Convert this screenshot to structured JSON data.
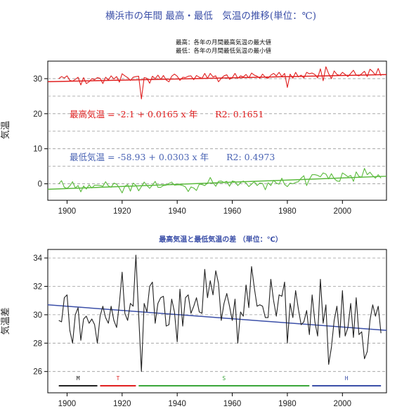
{
  "chart_data": [
    {
      "type": "line",
      "title": "横浜市の年間 最高・最低　気温の推移(単位：℃)",
      "subtitle_lines": [
        "最高：各年の月間最高気温の最大値",
        "最低：各年の月間最低気温の最小値"
      ],
      "ylabel": "気温",
      "xlabel": "",
      "xlim": [
        1893,
        2016
      ],
      "ylim": [
        -4.7,
        35
      ],
      "xticks": [
        1900,
        1920,
        1940,
        1960,
        1980,
        2000
      ],
      "yticks": [
        0,
        10,
        20,
        30
      ],
      "grid": "horizontal-dashed",
      "series": [
        {
          "color": "#e02020",
          "values_start_year": 1897,
          "values": [
            30,
            30.6,
            30.2,
            30.8,
            29.5,
            29.3,
            29.8,
            30.4,
            28.2,
            30.3,
            28.6,
            29.1,
            30,
            29.7,
            30.3,
            30.1,
            28.6,
            30.4,
            29.6,
            30.8,
            29.9,
            30.6,
            29,
            31.4,
            30.8,
            30.3,
            29.5,
            30.4,
            30.6,
            30.7,
            24.2,
            30.3,
            30.1,
            28.7,
            30.7,
            30,
            31,
            29.8,
            30.9,
            29.6,
            29.1,
            30.7,
            31.3,
            30.7,
            29.5,
            30.4,
            30.3,
            30.7,
            30.8,
            29.7,
            30.9,
            30.4,
            30.1,
            31.5,
            30.1,
            31.5,
            30.5,
            30.8,
            29.1,
            30.1,
            30.8,
            31.1,
            29.8,
            30.3,
            31.5,
            30.1,
            30.8,
            30.5,
            31.2,
            30.2,
            31.6,
            31,
            30.7,
            30.1,
            31.3,
            30.4,
            30.1,
            31,
            31.5,
            30.8,
            31.8,
            30.6,
            31.5,
            27.5,
            31.3,
            30.1,
            31.8,
            30.5,
            31,
            30.2,
            31.8,
            31.4,
            31.6,
            31.2,
            30.2,
            32.8,
            29.4,
            33.4,
            31.4,
            30,
            32.2,
            31.2,
            30.9,
            31.8,
            31.2,
            30.6,
            31.5,
            32.4,
            31,
            30.8,
            31.4,
            32.1,
            30.6,
            32.7,
            32,
            31,
            32.9,
            30.8
          ]
        },
        {
          "color": "#5aba3c",
          "values_start_year": 1897,
          "values": [
            0,
            0.9,
            -1,
            -1.3,
            -0.6,
            0.6,
            -1.2,
            -0.5,
            -2.3,
            -0.6,
            -1.5,
            -0.3,
            -1.2,
            -0.4,
            -0.4,
            -0.5,
            -0.7,
            0.6,
            -0.6,
            -1,
            0.2,
            -0.1,
            -1.2,
            -2.6,
            -0.7,
            -0.2,
            -2.1,
            0.2,
            -0.4,
            -2,
            -0.8,
            0.5,
            -0.5,
            -1.3,
            -0.4,
            0.7,
            -1,
            -1,
            -0.5,
            -0.4,
            0.1,
            0.5,
            -0.4,
            -0.3,
            -0.3,
            -0.5,
            -0.9,
            -2.2,
            -0.9,
            -1.2,
            -1.9,
            -0.1,
            -0.2,
            -0.5,
            0.2,
            1.8,
            0.3,
            -0.7,
            0.7,
            0.8,
            0.4,
            0.7,
            -0.7,
            0.8,
            0.6,
            -0.5,
            0.3,
            0.8,
            0.2,
            -0.8,
            -0.1,
            0.6,
            -0.5,
            0.2,
            0.1,
            -1.7,
            0.3,
            -0.5,
            1,
            0.2,
            -0.1,
            1.6,
            -0.2,
            -0.8,
            0.2,
            0,
            0.4,
            0.6,
            1.6,
            2.3,
            -0.5,
            1.3,
            2.6,
            2.6,
            2.4,
            2,
            3.1,
            2.8,
            1.4,
            2.9,
            1.5,
            0.8,
            0.7,
            3.1,
            2.6,
            2,
            2.4,
            0.7,
            3.4,
            2.1,
            1.9,
            4.4,
            2.6,
            3.3,
            2.3,
            1.6,
            2.6,
            1.6
          ]
        }
      ],
      "trendlines": [
        {
          "color": "#e02020",
          "intercept": -2.1,
          "slope": 0.0165,
          "text": "最高気温 = -2.1 + 0.0165 x 年　　R2: 0.1651"
        },
        {
          "color": "#5aba3c",
          "intercept": -58.93,
          "slope": 0.0303,
          "text": "最低気温 = -58.93 + 0.0303 x 年　　R2: 0.4973",
          "text_color": "#4a64b4"
        }
      ]
    },
    {
      "type": "line",
      "title": "最高気温と最低気温の差 （単位：℃）",
      "ylabel": "気温差",
      "xlabel": "",
      "xlim": [
        1893,
        2016
      ],
      "ylim": [
        24.5,
        34.6
      ],
      "xticks": [
        1900,
        1920,
        1940,
        1960,
        1980,
        2000
      ],
      "yticks": [
        26,
        28,
        30,
        32,
        34
      ],
      "grid": "horizontal-dashed",
      "series": [
        {
          "color": "#222222",
          "values_start_year": 1897,
          "values": [
            29.6,
            29.5,
            31.2,
            31.4,
            28.9,
            28,
            30,
            30.5,
            28.2,
            29.7,
            29.9,
            29.4,
            29.7,
            29.3,
            28,
            29.9,
            30.6,
            29.8,
            29.4,
            30.6,
            29.6,
            29.1,
            30.8,
            33,
            30.1,
            29.6,
            30.8,
            30.6,
            34.2,
            30,
            26,
            30.8,
            30.2,
            32,
            32.3,
            29.4,
            30.8,
            31.2,
            31.3,
            29.2,
            29.3,
            31.1,
            30.2,
            28.1,
            31.8,
            29.2,
            31.2,
            31.4,
            30.1,
            30.6,
            31.2,
            30.2,
            30.1,
            33.2,
            31.2,
            32.4,
            31.4,
            33.1,
            32.2,
            29.6,
            30.8,
            31.5,
            30.6,
            29.6,
            31.1,
            28,
            30.2,
            29.9,
            32.1,
            30.5,
            33.4,
            31.9,
            30.6,
            30.7,
            30.6,
            29.8,
            29.8,
            32.5,
            31,
            29.9,
            31.4,
            31.3,
            32.3,
            28,
            30.8,
            29.8,
            31.7,
            30.4,
            29.3,
            29.5,
            30.3,
            28.6,
            31.4,
            29.5,
            28.5,
            32.5,
            29.4,
            30.7,
            26.5,
            27.7,
            29.6,
            30.6,
            28.4,
            31.7,
            28.5,
            29.1,
            30.8,
            28.4,
            31.2,
            28.6,
            28.8,
            26.9,
            27.4,
            29.6,
            30.7,
            29.9,
            30.6,
            28.7
          ]
        }
      ],
      "trendlines": [
        {
          "color": "#3b4fa8",
          "x0": 1893,
          "y0": 30.7,
          "x1": 2016,
          "y1": 28.9
        }
      ],
      "eras": [
        {
          "label": "M",
          "start": 1897,
          "end": 1911,
          "color": "#222222"
        },
        {
          "label": "T",
          "start": 1912,
          "end": 1925,
          "color": "#e02020"
        },
        {
          "label": "S",
          "start": 1926,
          "end": 1988,
          "color": "#3aa63a"
        },
        {
          "label": "H",
          "start": 1989,
          "end": 2014,
          "color": "#3b4fa8"
        }
      ]
    }
  ]
}
